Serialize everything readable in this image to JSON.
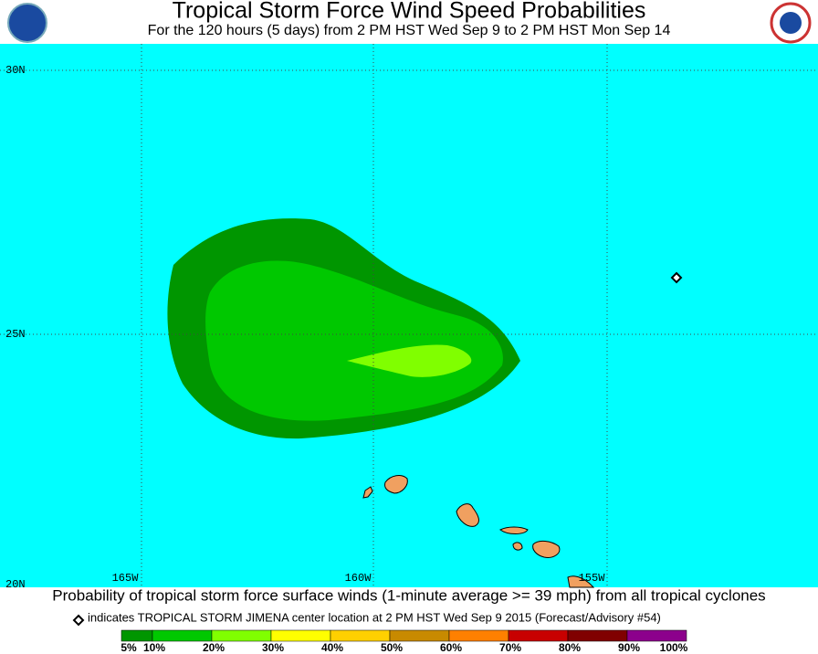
{
  "title": "Tropical Storm Force Wind Speed Probabilities",
  "subtitle": "For the 120 hours (5 days) from 2 PM HST Wed Sep 9 to 2 PM HST Mon Sep 14",
  "latitudes": [
    "30N",
    "25N",
    "20N"
  ],
  "longitudes": [
    "165W",
    "160W",
    "155W"
  ],
  "caption": "Probability of tropical storm force surface winds (1-minute average >= 39 mph) from all tropical cyclones",
  "marker_note": "indicates TROPICAL STORM JIMENA center location at 2 PM HST Wed Sep 9 2015 (Forecast/Advisory #54)",
  "legend": {
    "colors": [
      "#009600",
      "#00c800",
      "#80ff00",
      "#ffff00",
      "#ffd000",
      "#c88a00",
      "#ff8000",
      "#c80000",
      "#800000",
      "#8c008c"
    ],
    "labels": [
      "5%",
      "10%",
      "20%",
      "30%",
      "40%",
      "50%",
      "60%",
      "70%",
      "80%",
      "90%",
      "100%"
    ]
  }
}
